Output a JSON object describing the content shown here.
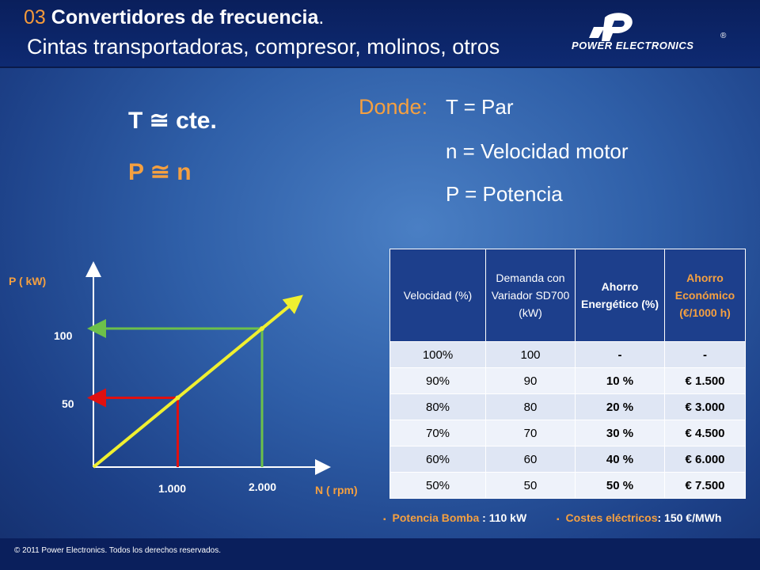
{
  "header": {
    "title_number": "03",
    "title_main": "Convertidores de frecuencia",
    "title_suffix": ".",
    "subtitle": "Cintas transportadoras, compresor, molinos, otros",
    "logo_text": "POWER ELECTRONICS",
    "logo_reg": "®"
  },
  "formulas": {
    "torque": "T ≅ cte.",
    "power": "P ≅ n"
  },
  "definitions": {
    "label": "Donde:",
    "items": [
      "T = Par",
      "n = Velocidad motor",
      "P = Potencia"
    ]
  },
  "chart_data": {
    "type": "line",
    "ylabel": "P ( kW)",
    "xlabel": "N ( rpm)",
    "x_ticks": [
      "1.000",
      "2.000"
    ],
    "y_ticks": [
      "50",
      "100"
    ],
    "series": [
      {
        "x": [
          0,
          1000,
          2000
        ],
        "y": [
          0,
          50,
          100
        ]
      }
    ],
    "highlights": [
      {
        "x": 1000,
        "y": 50,
        "color": "#e01010"
      },
      {
        "x": 2000,
        "y": 100,
        "color": "#6cc04a"
      }
    ],
    "line_color": "#f0f030"
  },
  "table": {
    "headers": [
      "Velocidad (%)",
      "Demanda con Variador SD700 (kW)",
      "Ahorro Energético (%)",
      "Ahorro Económico (€/1000 h)"
    ],
    "rows": [
      [
        "100%",
        "100",
        "-",
        "-"
      ],
      [
        "90%",
        "90",
        "10 %",
        "€ 1.500"
      ],
      [
        "80%",
        "80",
        "20 %",
        "€ 3.000"
      ],
      [
        "70%",
        "70",
        "30 %",
        "€ 4.500"
      ],
      [
        "60%",
        "60",
        "40 %",
        "€ 6.000"
      ],
      [
        "50%",
        "50",
        "50 %",
        "€ 7.500"
      ]
    ]
  },
  "notes": {
    "pump_label": "Potencia Bomba",
    "pump_value": ": 110 kW",
    "cost_label": "Costes eléctricos",
    "cost_value": ": 150 €/MWh"
  },
  "footer": {
    "copyright": "© 2011 Power Electronics. Todos los derechos reservados."
  }
}
